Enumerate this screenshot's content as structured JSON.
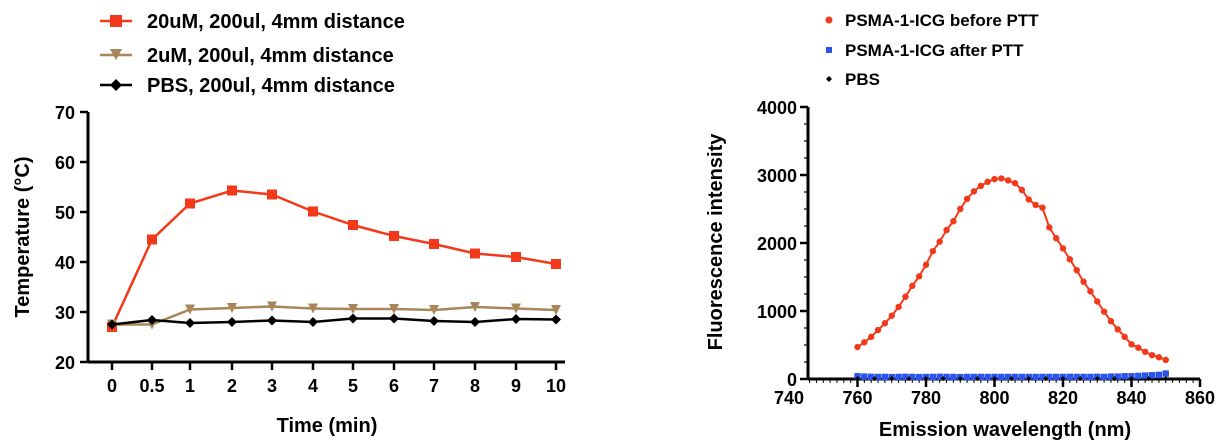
{
  "chart_data": [
    {
      "type": "line",
      "title": "",
      "xlabel": "Time (min)",
      "ylabel": "Temperature (°C)",
      "categories": [
        "0",
        "0.5",
        "1",
        "2",
        "3",
        "4",
        "5",
        "6",
        "7",
        "8",
        "9",
        "10"
      ],
      "ylim": [
        20,
        70
      ],
      "yticks": [
        "20",
        "30",
        "40",
        "50",
        "60",
        "70"
      ],
      "grid": false,
      "legend_position": "top-left",
      "series": [
        {
          "name": "20uM, 200ul, 4mm distance",
          "color": "#f23a1a",
          "marker": "square",
          "values": [
            27,
            44.5,
            51.7,
            54.3,
            53.5,
            50.1,
            47.4,
            45.2,
            43.6,
            41.7,
            41,
            39.6
          ]
        },
        {
          "name": "2uM, 200ul, 4mm distance",
          "color": "#a8865a",
          "marker": "triangle-down",
          "values": [
            27.5,
            27.5,
            30.5,
            30.8,
            31.1,
            30.7,
            30.6,
            30.6,
            30.4,
            31,
            30.7,
            30.4
          ]
        },
        {
          "name": "PBS, 200ul, 4mm distance",
          "color": "#000000",
          "marker": "diamond",
          "values": [
            27.5,
            28.4,
            27.8,
            28.0,
            28.3,
            28.0,
            28.7,
            28.7,
            28.2,
            28.0,
            28.6,
            28.5
          ]
        }
      ]
    },
    {
      "type": "scatter",
      "title": "",
      "xlabel": "Emission wavelength (nm)",
      "ylabel": "Fluorescence intensity",
      "xlim": [
        740,
        860
      ],
      "ylim": [
        0,
        4000
      ],
      "xticks": [
        "740",
        "760",
        "780",
        "800",
        "820",
        "840",
        "860"
      ],
      "yticks": [
        "0",
        "1000",
        "2000",
        "3000",
        "4000"
      ],
      "grid": false,
      "legend_position": "top-left",
      "series": [
        {
          "name": "PSMA-1-ICG before PTT",
          "color": "#f23a1a",
          "marker": "circle",
          "connected": true,
          "x": [
            760,
            762,
            764,
            766,
            768,
            770,
            772,
            774,
            776,
            778,
            780,
            782,
            784,
            786,
            788,
            790,
            792,
            794,
            796,
            798,
            800,
            802,
            804,
            806,
            808,
            810,
            812,
            814,
            816,
            818,
            820,
            822,
            824,
            826,
            828,
            830,
            832,
            834,
            836,
            838,
            840,
            842,
            844,
            846,
            848,
            850
          ],
          "y": [
            470,
            540,
            620,
            720,
            820,
            930,
            1060,
            1210,
            1370,
            1510,
            1680,
            1880,
            2020,
            2190,
            2320,
            2500,
            2650,
            2760,
            2840,
            2900,
            2940,
            2950,
            2920,
            2880,
            2780,
            2640,
            2560,
            2520,
            2230,
            2070,
            1920,
            1760,
            1600,
            1430,
            1290,
            1140,
            990,
            850,
            730,
            620,
            510,
            460,
            400,
            350,
            320,
            280
          ]
        },
        {
          "name": "PSMA-1-ICG after PTT",
          "color": "#2a55e8",
          "marker": "square",
          "connected": false,
          "x": [
            760,
            762,
            764,
            766,
            768,
            770,
            772,
            774,
            776,
            778,
            780,
            782,
            784,
            786,
            788,
            790,
            792,
            794,
            796,
            798,
            800,
            802,
            804,
            806,
            808,
            810,
            812,
            814,
            816,
            818,
            820,
            822,
            824,
            826,
            828,
            830,
            832,
            834,
            836,
            838,
            840,
            842,
            844,
            846,
            848,
            850
          ],
          "y": [
            40,
            35,
            32,
            30,
            30,
            28,
            30,
            32,
            30,
            28,
            30,
            30,
            32,
            30,
            30,
            28,
            30,
            30,
            30,
            30,
            30,
            30,
            30,
            30,
            30,
            30,
            30,
            30,
            30,
            30,
            30,
            32,
            30,
            30,
            30,
            32,
            30,
            35,
            35,
            40,
            40,
            45,
            50,
            55,
            60,
            80
          ]
        },
        {
          "name": "PBS",
          "color": "#000000",
          "marker": "diamond",
          "connected": false,
          "x": [
            760,
            765,
            770,
            775,
            780,
            785,
            790,
            795,
            800,
            805,
            810,
            815,
            820,
            825,
            830,
            835,
            840,
            845,
            850
          ],
          "y": [
            5,
            5,
            5,
            5,
            5,
            5,
            5,
            5,
            5,
            5,
            5,
            5,
            5,
            5,
            5,
            5,
            5,
            5,
            5
          ]
        }
      ]
    }
  ]
}
